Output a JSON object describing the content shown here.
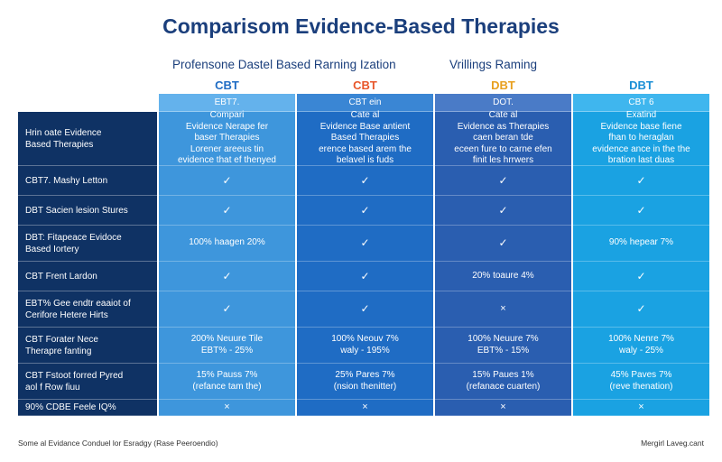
{
  "title": "Comparisom Evidence-Based Therapies",
  "subtitles": {
    "left": "Profensone Dastel Based Rarning Ization",
    "right": "Vrillings Raming"
  },
  "colors": {
    "title": "#1b3f7c",
    "col_cbt_1": "#1f6cc4",
    "col_cbt_2": "#e8562a",
    "col_dbt_1": "#e8a020",
    "col_dbt_2": "#1a8fd6",
    "row_label_bg": "#0f3264"
  },
  "columns": [
    {
      "head": "CBT",
      "sub": "EBT7."
    },
    {
      "head": "CBT",
      "sub": "CBT ein"
    },
    {
      "head": "DBT",
      "sub": "DOT."
    },
    {
      "head": "DBT",
      "sub": "CBT 6"
    }
  ],
  "desc_row": {
    "label": "Hrin oate Evidence\nBased Therapies",
    "cells": [
      "Compari\nEvidence Nerape fer\nbaser Therapies\nLorener areeus tin\nevidence that ef thenyed",
      "Cate al\nEvidence Base antient\nBased Therapies\nerence based arem the\nbelavel is fuds",
      "Cate al\nEvidence as Therapies\ncaen beran tde\neceen fure to carne efen\nfinit les hrrwers",
      "Exatind\nEvidence base fiene\nfhan to heraglan\nevidence ance in the the\nbration last duas"
    ]
  },
  "rows": [
    {
      "label": "CBT7. Mashy Letton",
      "cells": [
        "✓",
        "✓",
        "✓",
        "✓"
      ]
    },
    {
      "label": "DBT Sacien lesion Stures",
      "cells": [
        "✓",
        "✓",
        "✓",
        "✓"
      ]
    },
    {
      "label": "DBT: Fitapeace Evidoce\nBased Iortery",
      "cells": [
        "100% haagen 20%",
        "✓",
        "✓",
        "90% hepear 7%"
      ]
    },
    {
      "label": "CBT Frent Lardon",
      "cells": [
        "✓",
        "✓",
        "20% toaure 4%",
        "✓"
      ]
    },
    {
      "label": "EBT% Gee endtr eaaiot of\nCerifore Hetere Hirts",
      "cells": [
        "✓",
        "✓",
        "×",
        "✓"
      ]
    },
    {
      "label": "CBT Forater Nece\nTherapre fanting",
      "cells": [
        "200% Neuure Tile\nEBT% - 25%",
        "100% Neouv 7%\nwaly - 195%",
        "100% Neuure 7%\nEBT% - 15%",
        "100% Nenre 7%\nwaly - 25%"
      ]
    },
    {
      "label": "CBT Fstoot forred Pyred\naol f Row fiuu",
      "cells": [
        "15% Pauss 7%\n(refance tam the)",
        "25% Pares 7%\n(nsion thenitter)",
        "15% Paues 1%\n(refanace cuarten)",
        "45% Paves 7%\n(reve thenation)"
      ]
    },
    {
      "label": "90% CDBE Feele IQ%",
      "cells": [
        "×",
        "×",
        "×",
        "×"
      ]
    }
  ],
  "footer": {
    "left": "Some al Evidance Conduel lor Esradgy (Rase Peeroendio)",
    "right": "Mergirl Laveg.cant"
  }
}
